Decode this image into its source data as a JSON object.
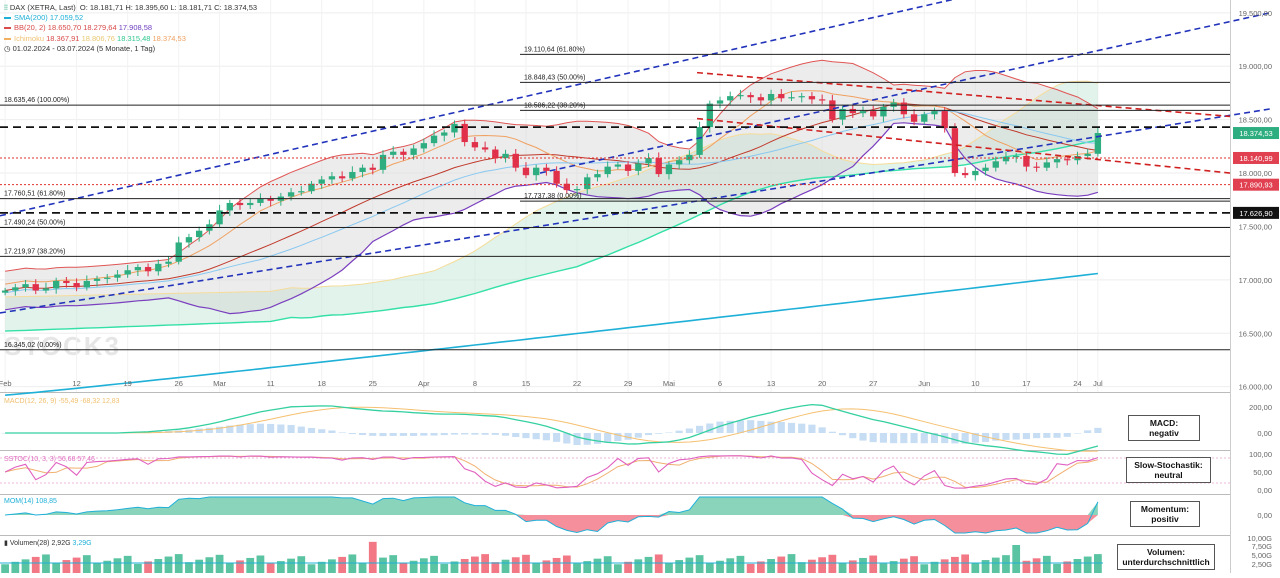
{
  "legend": {
    "title": "DAX (XETRA, Last)",
    "ohlc": "O: 18.181,71  H: 18.395,60  L: 18.181,71  C: 18.374,53",
    "sma": {
      "label": "SMA(200)",
      "value": "17.059,52",
      "color": "#1fb0d8"
    },
    "bb": {
      "label": "BB(20, 2)",
      "values": [
        "18.650,70",
        "18.279,64",
        "17.908,58"
      ],
      "color": "#d94a4a"
    },
    "ichimoku": {
      "label": "Ichimoku",
      "values": [
        "18.367,91",
        "18.806,76",
        "18.315,48",
        "18.374,53"
      ]
    },
    "period": "01.02.2024 - 03.07.2024  (5 Monate, 1 Tag)"
  },
  "price_axis": [
    "19.500,00",
    "19.000,00",
    "18.500,00",
    "18.000,00",
    "17.500,00",
    "17.000,00",
    "16.500,00",
    "16.000,00"
  ],
  "price_tags": [
    {
      "text": "18.374,53",
      "value": 18374.53,
      "bg": "#2eae80"
    },
    {
      "text": "18.140,99",
      "value": 18140.99,
      "bg": "#e04050"
    },
    {
      "text": "17.890,93",
      "value": 17890.93,
      "bg": "#e04050"
    },
    {
      "text": "17.626,90",
      "value": 17626.9,
      "bg": "#111111"
    }
  ],
  "fib_levels": [
    {
      "label": "19.110,64 (61.80%)",
      "value": 19110.64
    },
    {
      "label": "18.848,43 (50.00%)",
      "value": 18848.43
    },
    {
      "label": "18.586,22 (38.20%)",
      "value": 18586.22
    },
    {
      "label": "18.635,46 (100.00%)",
      "value": 18635.46
    },
    {
      "label": "17.760,51 (61.80%)",
      "value": 17760.51
    },
    {
      "label": "17.737,38 (0.00%)",
      "value": 17737.38
    },
    {
      "label": "17.490,24 (50.00%)",
      "value": 17490.24
    },
    {
      "label": "17.219,97 (38.20%)",
      "value": 17219.97
    },
    {
      "label": "16.345,02 (0.00%)",
      "value": 16345.02
    }
  ],
  "dashed_levels": [
    18430,
    17626.9
  ],
  "red_dotted_levels": [
    18140.99,
    17890.93
  ],
  "x_labels": [
    "Feb",
    "12",
    "19",
    "26",
    "Mar",
    "11",
    "18",
    "25",
    "Apr",
    "8",
    "15",
    "22",
    "29",
    "Mai",
    "6",
    "13",
    "20",
    "27",
    "Jun",
    "10",
    "17",
    "24",
    "Jul"
  ],
  "watermark": "STOCK3",
  "panels": {
    "macd": {
      "legend": "MACD(12, 26, 9)  -55,49  -68,32  12,83",
      "axis": [
        "200,00",
        "0,00"
      ],
      "box": [
        "MACD:",
        "negativ"
      ]
    },
    "stoch": {
      "legend": "SSTOC(10, 3, 3)  56,68  57,46",
      "axis": [
        "100,00",
        "50,00",
        "0,00"
      ],
      "box": [
        "Slow-Stochastik:",
        "neutral"
      ]
    },
    "mom": {
      "legend": "MOM(14)  108,85",
      "axis": [
        "0,00"
      ],
      "box": [
        "Momentum:",
        "positiv"
      ]
    },
    "vol": {
      "legend_label": "Volumen(28)",
      "legend_v1": "2,92G",
      "legend_v2": "3,29G",
      "axis": [
        "10,00G",
        "7,50G",
        "5,00G",
        "2,50G"
      ],
      "box": [
        "Volumen:",
        "unterdurchschnittlich"
      ]
    }
  },
  "chart_data": {
    "type": "candlestick",
    "title": "DAX (XETRA, Last)",
    "period": "01.02.2024 - 03.07.2024",
    "ylim": [
      15950,
      19620
    ],
    "close": [
      16900,
      16930,
      16960,
      16900,
      16920,
      16990,
      16970,
      16930,
      16990,
      17010,
      17020,
      17050,
      17090,
      17120,
      17080,
      17150,
      17170,
      17350,
      17400,
      17460,
      17520,
      17650,
      17720,
      17700,
      17720,
      17760,
      17740,
      17780,
      17820,
      17830,
      17900,
      17940,
      17970,
      17950,
      18010,
      18050,
      18030,
      18170,
      18200,
      18170,
      18230,
      18280,
      18350,
      18380,
      18460,
      18290,
      18240,
      18220,
      18140,
      18180,
      18050,
      17980,
      18050,
      18020,
      17900,
      17840,
      17850,
      17960,
      17990,
      18060,
      18080,
      18020,
      18090,
      18140,
      17990,
      18080,
      18120,
      18170,
      18430,
      18650,
      18680,
      18720,
      18730,
      18710,
      18680,
      18740,
      18700,
      18710,
      18720,
      18690,
      18680,
      18500,
      18600,
      18560,
      18580,
      18530,
      18620,
      18660,
      18550,
      18480,
      18550,
      18580,
      18420,
      18000,
      17980,
      18020,
      18050,
      18110,
      18150,
      18160,
      18060,
      18050,
      18100,
      18130,
      18120,
      18160,
      18180,
      18374.53
    ],
    "sma200": {
      "start": 15920,
      "end": 17059.52
    },
    "volume_range": [
      0,
      10000000000
    ],
    "macd": {
      "macd": -55.49,
      "signal": -68.32,
      "hist": 12.83
    },
    "slow_stoch": {
      "k": 56.68,
      "d": 57.46
    },
    "momentum": 108.85
  }
}
